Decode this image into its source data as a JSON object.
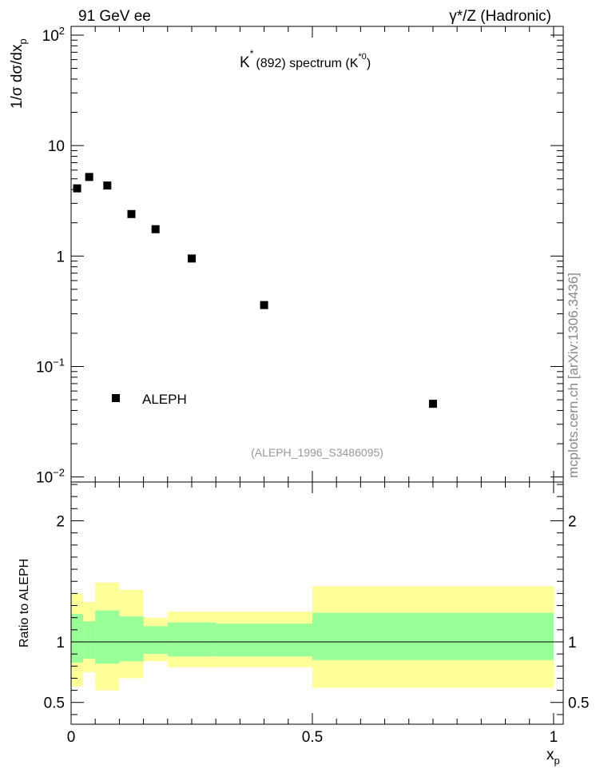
{
  "header": {
    "left_label": "91 GeV ee",
    "right_label": "γ*/Z (Hadronic)"
  },
  "watermark": "mcplots.cern.ch [arXiv:1306.3436]",
  "chart_data": [
    {
      "type": "scatter",
      "name": "main-spectrum",
      "title_main": "K",
      "title_sup": "*",
      "title_rest": "(892) spectrum (K",
      "title_rest_sup": "*0",
      "title_close": ")",
      "xlabel": "x",
      "xlabel_sub": "p",
      "ylabel": "1/σ dσ/dx",
      "ylabel_sub": "p",
      "yscale": "log",
      "xlim": [
        0,
        1.02
      ],
      "ylim": [
        0.009,
        120
      ],
      "y_ticks": [
        {
          "value": 100,
          "base": "10",
          "exp": "2"
        },
        {
          "value": 10,
          "base": "10",
          "exp": ""
        },
        {
          "value": 1,
          "base": "1",
          "exp": ""
        },
        {
          "value": 0.1,
          "base": "10",
          "exp": "−1"
        },
        {
          "value": 0.01,
          "base": "10",
          "exp": "−2"
        }
      ],
      "series": [
        {
          "name": "ALEPH",
          "marker": "square",
          "color": "#000000",
          "x": [
            0.0125,
            0.0375,
            0.075,
            0.125,
            0.175,
            0.25,
            0.4,
            0.75
          ],
          "y": [
            4.1,
            5.2,
            4.35,
            2.4,
            1.75,
            0.95,
            0.36,
            0.046
          ]
        }
      ],
      "legend": {
        "entry": "ALEPH",
        "position": "bottom-left"
      },
      "analysis_tag": "(ALEPH_1996_S3486095)"
    },
    {
      "type": "area",
      "name": "ratio-panel",
      "ylabel": "Ratio to ALEPH",
      "xlim": [
        0,
        1.02
      ],
      "ylim": [
        0.32,
        2.32
      ],
      "x_ticks": [
        {
          "value": 0,
          "label": "0"
        },
        {
          "value": 0.5,
          "label": "0.5"
        },
        {
          "value": 1,
          "label": "1"
        }
      ],
      "y_ticks": [
        {
          "value": 0.5,
          "label": "0.5"
        },
        {
          "value": 1,
          "label": "1"
        },
        {
          "value": 2,
          "label": "2"
        }
      ],
      "reference_line": 1,
      "bins": [
        {
          "lo": 0.0,
          "hi": 0.025,
          "inner": [
            0.83,
            1.23
          ],
          "outer": [
            0.63,
            1.4
          ]
        },
        {
          "lo": 0.025,
          "hi": 0.05,
          "inner": [
            0.86,
            1.17
          ],
          "outer": [
            0.75,
            1.33
          ]
        },
        {
          "lo": 0.05,
          "hi": 0.1,
          "inner": [
            0.82,
            1.26
          ],
          "outer": [
            0.6,
            1.49
          ]
        },
        {
          "lo": 0.1,
          "hi": 0.15,
          "inner": [
            0.84,
            1.21
          ],
          "outer": [
            0.7,
            1.43
          ]
        },
        {
          "lo": 0.15,
          "hi": 0.2,
          "inner": [
            0.9,
            1.13
          ],
          "outer": [
            0.84,
            1.2
          ]
        },
        {
          "lo": 0.2,
          "hi": 0.3,
          "inner": [
            0.88,
            1.16
          ],
          "outer": [
            0.79,
            1.25
          ]
        },
        {
          "lo": 0.3,
          "hi": 0.5,
          "inner": [
            0.88,
            1.15
          ],
          "outer": [
            0.79,
            1.25
          ]
        },
        {
          "lo": 0.5,
          "hi": 1.0,
          "inner": [
            0.85,
            1.24
          ],
          "outer": [
            0.62,
            1.46
          ]
        }
      ],
      "inner_color": "#99ff99",
      "outer_color": "#ffff99"
    }
  ]
}
